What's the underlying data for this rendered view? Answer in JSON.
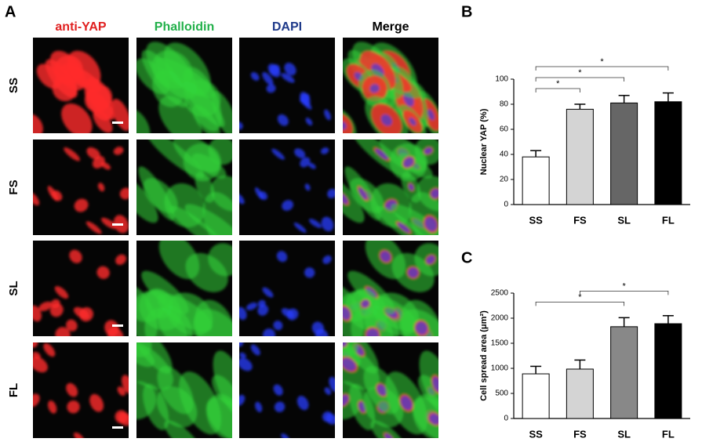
{
  "panel_a": {
    "label": "A",
    "columns": [
      "anti-YAP",
      "Phalloidin",
      "DAPI",
      "Merge"
    ],
    "rows": [
      "SS",
      "FS",
      "SL",
      "FL"
    ]
  },
  "chart_data": [
    {
      "type": "bar",
      "panel_label": "B",
      "y_label": "Nuclear YAP (%)",
      "categories": [
        "SS",
        "FS",
        "SL",
        "FL"
      ],
      "values": [
        38,
        76,
        81,
        82
      ],
      "errors": [
        5,
        4,
        6,
        7
      ],
      "colors": [
        "#ffffff",
        "#d4d4d4",
        "#666666",
        "#000000"
      ],
      "ylim": [
        0,
        100
      ],
      "yticks": [
        0,
        20,
        40,
        60,
        80,
        100
      ],
      "annotations": [
        {
          "text": "*",
          "from": "SS",
          "to": "FS"
        },
        {
          "text": "*",
          "from": "SS",
          "to": "SL"
        },
        {
          "text": "*",
          "from": "SS",
          "to": "FL"
        }
      ]
    },
    {
      "type": "bar",
      "panel_label": "C",
      "y_label": "Cell spread area (μm²)",
      "categories": [
        "SS",
        "FS",
        "SL",
        "FL"
      ],
      "values": [
        890,
        985,
        1830,
        1890
      ],
      "errors": [
        150,
        180,
        180,
        160
      ],
      "colors": [
        "#ffffff",
        "#d4d4d4",
        "#888888",
        "#000000"
      ],
      "ylim": [
        0,
        2500
      ],
      "yticks": [
        0,
        500,
        1000,
        1500,
        2000,
        2500
      ],
      "annotations": [
        {
          "text": "*",
          "from": "SS",
          "to": "SL"
        },
        {
          "text": "*",
          "from": "FS",
          "to": "FL"
        }
      ]
    }
  ]
}
